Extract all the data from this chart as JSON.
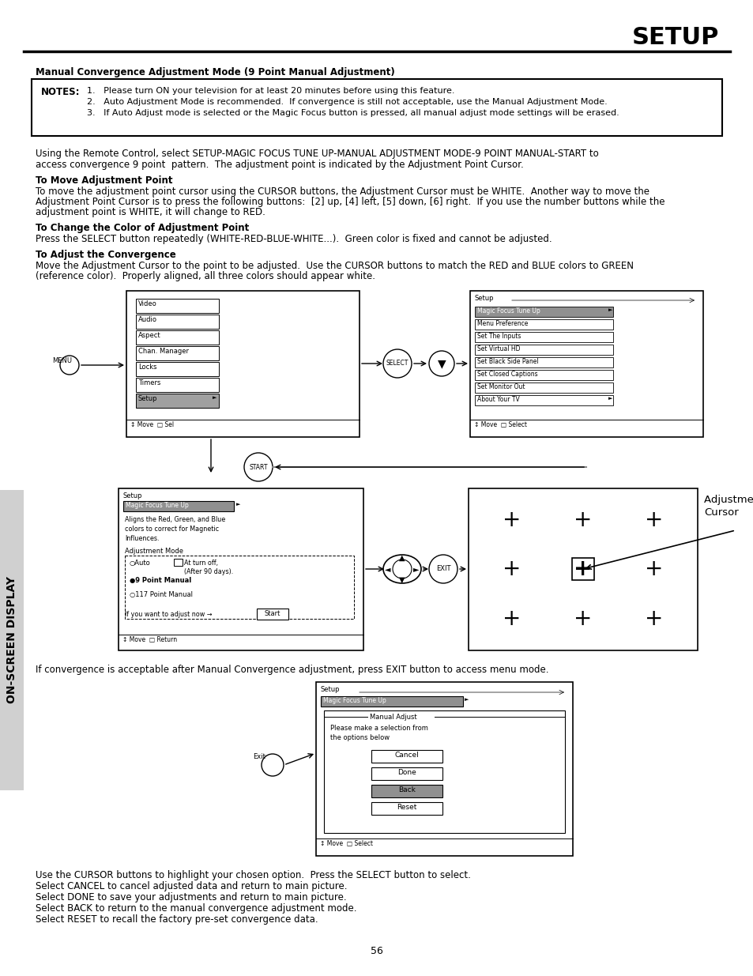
{
  "page_title": "SETUP",
  "section_title": "Manual Convergence Adjustment Mode (9 Point Manual Adjustment)",
  "notes_header": "NOTES:",
  "notes": [
    "Please turn ON your television for at least 20 minutes before using this feature.",
    "Auto Adjustment Mode is recommended.  If convergence is still not acceptable, use the Manual Adjustment Mode.",
    "If Auto Adjust mode is selected or the Magic Focus button is pressed, all manual adjust mode settings will be erased."
  ],
  "intro_text1": "Using the Remote Control, select SETUP-MAGIC FOCUS TUNE UP-MANUAL ADJUSTMENT MODE-9 POINT MANUAL-START to",
  "intro_text2": "access convergence 9 point  pattern.  The adjustment point is indicated by the Adjustment Point Cursor.",
  "section2_title": "To Move Adjustment Point",
  "section2_lines": [
    "To move the adjustment point cursor using the CURSOR buttons, the Adjustment Cursor must be WHITE.  Another way to move the",
    "Adjustment Point Cursor is to press the following buttons:  [2] up, [4] left, [5] down, [6] right.  If you use the number buttons while the",
    "adjustment point is WHITE, it will change to RED."
  ],
  "section3_title": "To Change the Color of Adjustment Point",
  "section3_text": "Press the SELECT button repeatedly (WHITE-RED-BLUE-WHITE...).  Green color is fixed and cannot be adjusted.",
  "section4_title": "To Adjust the Convergence",
  "section4_lines": [
    "Move the Adjustment Cursor to the point to be adjusted.  Use the CURSOR buttons to match the RED and BLUE colors to GREEN",
    "(reference color).  Properly aligned, all three colors should appear white."
  ],
  "bottom_text": "If convergence is acceptable after Manual Convergence adjustment, press EXIT button to access menu mode.",
  "cursor_label_line1": "Adjustment Point",
  "cursor_label_line2": "Cursor",
  "bottom_bullets": [
    "Use the CURSOR buttons to highlight your chosen option.  Press the SELECT button to select.",
    "Select CANCEL to cancel adjusted data and return to main picture.",
    "Select DONE to save your adjustments and return to main picture.",
    "Select BACK to return to the manual convergence adjustment mode.",
    "Select RESET to recall the factory pre-set convergence data."
  ],
  "page_number": "56",
  "side_label": "ON-SCREEN DISPLAY",
  "bg_color": "#ffffff",
  "text_color": "#000000"
}
